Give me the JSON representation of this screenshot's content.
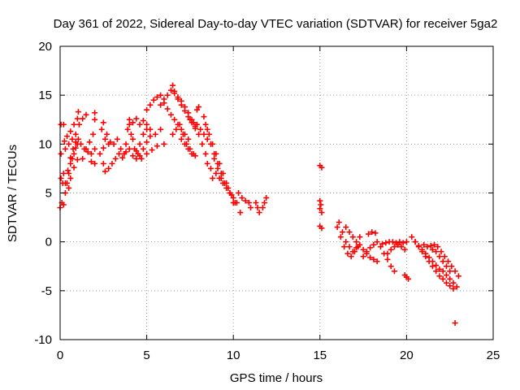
{
  "chart_data": {
    "type": "scatter",
    "title": "Day 361 of 2022, Sidereal Day-to-day VTEC variation (SDTVAR) for receiver 5ga2",
    "xlabel": "GPS time / hours",
    "ylabel": "SDTVAR / TECUs",
    "xlim": [
      0,
      25
    ],
    "ylim": [
      -10,
      20
    ],
    "xticks": [
      0,
      5,
      10,
      15,
      20,
      25
    ],
    "yticks": [
      -10,
      -5,
      0,
      5,
      10,
      15,
      20
    ],
    "grid": true,
    "legend": "none",
    "marker": "+",
    "series_color": "#ff0000",
    "series": [
      {
        "name": "SDTVAR",
        "points": [
          [
            0.0,
            3.5
          ],
          [
            0.05,
            6.5
          ],
          [
            0.05,
            9.0
          ],
          [
            0.05,
            12.0
          ],
          [
            0.1,
            4.0
          ],
          [
            0.15,
            6.0
          ],
          [
            0.2,
            12.0
          ],
          [
            0.2,
            7.0
          ],
          [
            0.25,
            10.3
          ],
          [
            0.2,
            3.8
          ],
          [
            0.3,
            5.0
          ],
          [
            0.4,
            6.0
          ],
          [
            0.5,
            7.0
          ],
          [
            0.6,
            8.0
          ],
          [
            0.7,
            8.5
          ],
          [
            0.8,
            9.0
          ],
          [
            0.9,
            9.6
          ],
          [
            1.0,
            10.0
          ],
          [
            0.3,
            6.0
          ],
          [
            0.45,
            7.3
          ],
          [
            0.6,
            8.6
          ],
          [
            0.75,
            9.5
          ],
          [
            0.9,
            10.2
          ],
          [
            1.05,
            10.5
          ],
          [
            1.2,
            10.0
          ],
          [
            1.4,
            9.5
          ],
          [
            1.6,
            9.2
          ],
          [
            1.8,
            9.0
          ],
          [
            2.0,
            9.5
          ],
          [
            0.3,
            9.5
          ],
          [
            0.5,
            10.0
          ],
          [
            0.7,
            10.5
          ],
          [
            0.9,
            11.0
          ],
          [
            1.1,
            12.0
          ],
          [
            1.3,
            12.6
          ],
          [
            1.5,
            13.0
          ],
          [
            0.4,
            10.8
          ],
          [
            0.6,
            11.3
          ],
          [
            0.8,
            12.0
          ],
          [
            1.0,
            12.6
          ],
          [
            1.05,
            13.3
          ],
          [
            1.3,
            8.5
          ],
          [
            1.5,
            9.5
          ],
          [
            1.7,
            10.2
          ],
          [
            1.9,
            11.0
          ],
          [
            2.0,
            12.5
          ],
          [
            2.0,
            13.2
          ],
          [
            0.5,
            5.5
          ],
          [
            0.6,
            6.5
          ],
          [
            0.8,
            7.6
          ],
          [
            1.0,
            8.4
          ],
          [
            1.8,
            8.2
          ],
          [
            2.0,
            8.0
          ],
          [
            2.3,
            9.0
          ],
          [
            2.5,
            9.6
          ],
          [
            2.6,
            10.5
          ],
          [
            2.8,
            10.0
          ],
          [
            2.5,
            8.0
          ],
          [
            2.6,
            7.2
          ],
          [
            2.8,
            7.5
          ],
          [
            3.0,
            8.0
          ],
          [
            3.2,
            8.5
          ],
          [
            3.4,
            9.0
          ],
          [
            3.6,
            8.6
          ],
          [
            3.8,
            9.2
          ],
          [
            2.4,
            11.5
          ],
          [
            2.5,
            12.2
          ],
          [
            2.7,
            11.0
          ],
          [
            2.9,
            10.2
          ],
          [
            3.1,
            10.0
          ],
          [
            3.3,
            10.5
          ],
          [
            3.5,
            9.5
          ],
          [
            3.7,
            9.0
          ],
          [
            3.9,
            11.5
          ],
          [
            4.0,
            12.0
          ],
          [
            4.1,
            11.0
          ],
          [
            4.2,
            10.5
          ],
          [
            4.3,
            9.5
          ],
          [
            4.4,
            8.5
          ],
          [
            4.6,
            8.8
          ],
          [
            4.8,
            9.5
          ],
          [
            5.0,
            10.2
          ],
          [
            5.2,
            10.8
          ],
          [
            3.8,
            10.0
          ],
          [
            4.0,
            9.5
          ],
          [
            4.2,
            8.8
          ],
          [
            4.4,
            9.3
          ],
          [
            4.6,
            10.0
          ],
          [
            4.8,
            11.0
          ],
          [
            5.0,
            11.5
          ],
          [
            4.0,
            12.5
          ],
          [
            4.2,
            12.2
          ],
          [
            4.4,
            12.6
          ],
          [
            4.6,
            12.0
          ],
          [
            4.8,
            12.4
          ],
          [
            5.0,
            12.0
          ],
          [
            5.2,
            11.5
          ],
          [
            5.5,
            11.0
          ],
          [
            5.8,
            11.5
          ],
          [
            4.5,
            9.0
          ],
          [
            4.7,
            8.5
          ],
          [
            5.0,
            9.0
          ],
          [
            5.3,
            9.4
          ],
          [
            5.6,
            9.8
          ],
          [
            6.0,
            10.0
          ],
          [
            5.0,
            13.5
          ],
          [
            5.2,
            14.0
          ],
          [
            5.4,
            14.5
          ],
          [
            5.6,
            14.8
          ],
          [
            5.8,
            15.0
          ],
          [
            6.0,
            14.2
          ],
          [
            6.2,
            13.6
          ],
          [
            6.4,
            13.0
          ],
          [
            6.6,
            12.5
          ],
          [
            6.8,
            12.0
          ],
          [
            7.0,
            11.5
          ],
          [
            7.2,
            11.0
          ],
          [
            7.4,
            10.5
          ],
          [
            5.8,
            14.0
          ],
          [
            6.0,
            14.6
          ],
          [
            6.2,
            15.0
          ],
          [
            6.4,
            15.5
          ],
          [
            6.5,
            16.0
          ],
          [
            6.6,
            15.2
          ],
          [
            6.8,
            14.6
          ],
          [
            7.0,
            14.0
          ],
          [
            7.2,
            13.4
          ],
          [
            7.4,
            12.8
          ],
          [
            7.6,
            12.2
          ],
          [
            7.8,
            11.6
          ],
          [
            6.6,
            15.4
          ],
          [
            6.8,
            14.8
          ],
          [
            7.0,
            14.4
          ],
          [
            7.2,
            13.8
          ],
          [
            7.4,
            13.2
          ],
          [
            7.6,
            12.5
          ],
          [
            7.8,
            11.8
          ],
          [
            8.0,
            11.0
          ],
          [
            8.2,
            10.0
          ],
          [
            8.4,
            9.0
          ],
          [
            6.5,
            11.0
          ],
          [
            6.7,
            11.5
          ],
          [
            6.9,
            12.0
          ],
          [
            7.1,
            11.0
          ],
          [
            7.3,
            10.0
          ],
          [
            7.5,
            9.5
          ],
          [
            7.7,
            9.0
          ],
          [
            7.0,
            10.5
          ],
          [
            7.2,
            10.0
          ],
          [
            7.4,
            9.5
          ],
          [
            7.6,
            9.0
          ],
          [
            7.8,
            8.8
          ],
          [
            7.5,
            12.5
          ],
          [
            7.7,
            12.2
          ],
          [
            7.9,
            12.0
          ],
          [
            8.1,
            11.5
          ],
          [
            8.3,
            11.0
          ],
          [
            8.5,
            10.5
          ],
          [
            8.7,
            10.0
          ],
          [
            8.9,
            9.0
          ],
          [
            9.1,
            8.0
          ],
          [
            9.3,
            7.0
          ],
          [
            7.9,
            13.5
          ],
          [
            8.0,
            13.8
          ],
          [
            8.3,
            12.8
          ],
          [
            8.4,
            12.0
          ],
          [
            8.5,
            11.5
          ],
          [
            8.6,
            11.0
          ],
          [
            8.8,
            10.0
          ],
          [
            9.0,
            9.0
          ],
          [
            9.2,
            8.0
          ],
          [
            9.4,
            7.0
          ],
          [
            9.6,
            6.0
          ],
          [
            9.8,
            5.0
          ],
          [
            10.0,
            4.0
          ],
          [
            8.5,
            8.0
          ],
          [
            8.7,
            7.5
          ],
          [
            8.9,
            8.5
          ],
          [
            9.1,
            7.5
          ],
          [
            9.3,
            6.5
          ],
          [
            9.5,
            6.0
          ],
          [
            9.7,
            5.5
          ],
          [
            9.9,
            4.8
          ],
          [
            10.1,
            4.0
          ],
          [
            8.8,
            6.5
          ],
          [
            9.0,
            7.0
          ],
          [
            9.2,
            6.5
          ],
          [
            9.4,
            6.0
          ],
          [
            9.6,
            5.5
          ],
          [
            9.8,
            5.0
          ],
          [
            10.0,
            4.5
          ],
          [
            10.2,
            4.0
          ],
          [
            10.4,
            3.0
          ],
          [
            10.3,
            5.0
          ],
          [
            10.5,
            4.5
          ],
          [
            10.7,
            4.2
          ],
          [
            10.9,
            4.0
          ],
          [
            11.0,
            3.5
          ],
          [
            11.3,
            4.0
          ],
          [
            11.4,
            3.5
          ],
          [
            11.5,
            3.0
          ],
          [
            11.7,
            3.5
          ],
          [
            11.8,
            4.0
          ],
          [
            11.9,
            4.5
          ],
          [
            15.0,
            7.8
          ],
          [
            15.1,
            7.6
          ],
          [
            15.0,
            4.2
          ],
          [
            15.05,
            3.8
          ],
          [
            15.0,
            3.4
          ],
          [
            15.1,
            3.0
          ],
          [
            15.0,
            1.6
          ],
          [
            15.1,
            1.4
          ],
          [
            16.0,
            1.5
          ],
          [
            16.1,
            2.0
          ],
          [
            16.3,
            1.0
          ],
          [
            16.5,
            0.0
          ],
          [
            16.7,
            -0.5
          ],
          [
            16.9,
            -1.0
          ],
          [
            17.1,
            -0.6
          ],
          [
            17.3,
            0.5
          ],
          [
            16.2,
            0.5
          ],
          [
            16.4,
            -0.5
          ],
          [
            16.6,
            -1.2
          ],
          [
            16.8,
            -1.5
          ],
          [
            17.0,
            -1.0
          ],
          [
            17.2,
            -0.5
          ],
          [
            16.5,
            1.5
          ],
          [
            16.7,
            1.0
          ],
          [
            16.9,
            0.5
          ],
          [
            17.1,
            0.0
          ],
          [
            17.3,
            -0.3
          ],
          [
            17.5,
            -0.8
          ],
          [
            17.7,
            -1.2
          ],
          [
            17.9,
            -1.6
          ],
          [
            18.1,
            -1.8
          ],
          [
            18.3,
            -2.0
          ],
          [
            17.5,
            -1.5
          ],
          [
            17.7,
            -1.0
          ],
          [
            17.9,
            -0.6
          ],
          [
            18.1,
            -0.3
          ],
          [
            18.3,
            0.0
          ],
          [
            17.8,
            0.8
          ],
          [
            18.0,
            1.0
          ],
          [
            18.2,
            0.9
          ],
          [
            18.5,
            -0.5
          ],
          [
            18.7,
            -1.2
          ],
          [
            18.9,
            -1.8
          ],
          [
            19.1,
            -2.5
          ],
          [
            19.3,
            -3.0
          ],
          [
            18.6,
            -0.2
          ],
          [
            18.8,
            -0.1
          ],
          [
            19.0,
            0.0
          ],
          [
            19.2,
            0.0
          ],
          [
            19.4,
            -0.1
          ],
          [
            19.6,
            0.0
          ],
          [
            19.8,
            -0.1
          ],
          [
            20.0,
            0.0
          ],
          [
            18.9,
            -1.2
          ],
          [
            19.1,
            -0.8
          ],
          [
            19.3,
            -0.5
          ],
          [
            19.5,
            -0.3
          ],
          [
            19.7,
            -0.5
          ],
          [
            19.9,
            -0.8
          ],
          [
            19.9,
            -3.4
          ],
          [
            20.0,
            -3.6
          ],
          [
            20.1,
            -3.8
          ],
          [
            20.3,
            0.5
          ],
          [
            20.5,
            0.0
          ],
          [
            20.7,
            -0.5
          ],
          [
            20.9,
            -1.0
          ],
          [
            21.1,
            -1.5
          ],
          [
            21.3,
            -2.0
          ],
          [
            21.5,
            -2.5
          ],
          [
            21.7,
            -3.0
          ],
          [
            21.9,
            -3.5
          ],
          [
            22.1,
            -3.8
          ],
          [
            22.3,
            -4.2
          ],
          [
            22.5,
            -4.5
          ],
          [
            22.7,
            -4.8
          ],
          [
            20.5,
            0.0
          ],
          [
            20.7,
            -0.4
          ],
          [
            20.9,
            -0.8
          ],
          [
            21.1,
            -1.2
          ],
          [
            21.3,
            -1.6
          ],
          [
            21.5,
            -2.0
          ],
          [
            21.7,
            -2.4
          ],
          [
            21.9,
            -2.8
          ],
          [
            22.1,
            -3.0
          ],
          [
            22.3,
            -3.4
          ],
          [
            22.5,
            -3.8
          ],
          [
            22.7,
            -4.2
          ],
          [
            22.9,
            -4.6
          ],
          [
            21.0,
            -0.3
          ],
          [
            21.2,
            -0.5
          ],
          [
            21.4,
            -0.4
          ],
          [
            21.6,
            -0.3
          ],
          [
            21.8,
            -0.5
          ],
          [
            22.0,
            -1.0
          ],
          [
            22.2,
            -1.5
          ],
          [
            22.4,
            -2.0
          ],
          [
            22.6,
            -2.5
          ],
          [
            22.8,
            -3.0
          ],
          [
            23.0,
            -3.5
          ],
          [
            21.5,
            -0.8
          ],
          [
            21.7,
            -1.0
          ],
          [
            21.9,
            -1.5
          ],
          [
            22.1,
            -2.0
          ],
          [
            22.3,
            -2.5
          ],
          [
            22.5,
            -3.0
          ],
          [
            22.8,
            -8.3
          ]
        ]
      }
    ]
  }
}
